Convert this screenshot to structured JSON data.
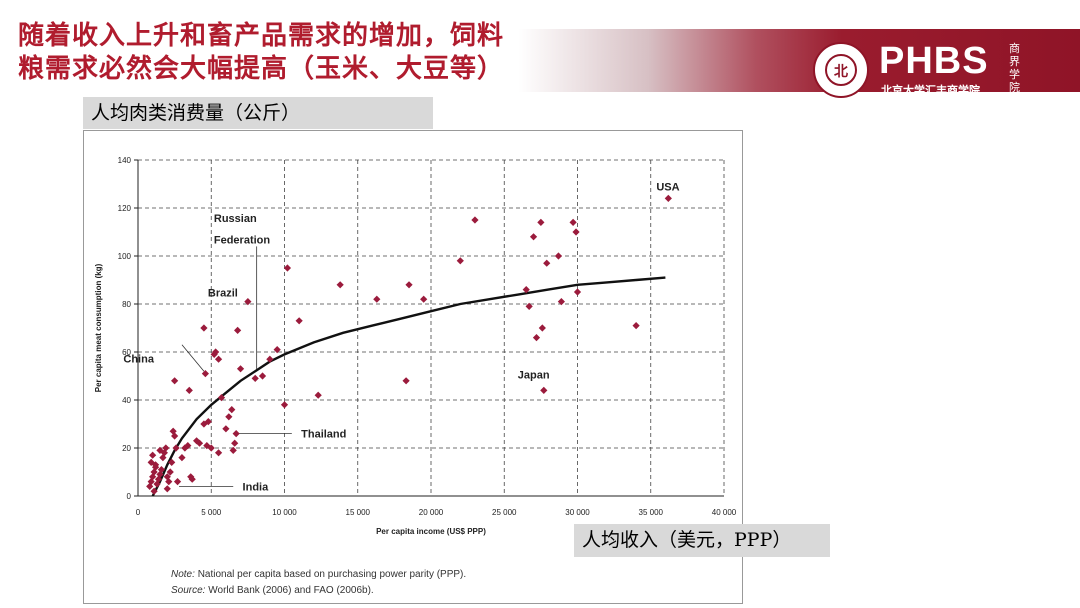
{
  "slide": {
    "title_line1": "随着收入上升和畜产品需求的增加，饲料",
    "title_line2": "粮需求必然会大幅提高（玉米、大豆等）",
    "y_unit_label": "人均肉类消费量（公斤）",
    "x_unit_label": "人均收入（美元，PPP）",
    "logo_text": "PHBS",
    "logo_subtitle": "北京大学汇丰商学院",
    "logo_calligraphy": "商界学院",
    "logo_seal_glyph": "北",
    "brand_color": "#8f1427",
    "title_color": "#b01c2e"
  },
  "notes": {
    "note_label": "Note:",
    "note_text": "National per capita based on purchasing power parity (PPP).",
    "source_label": "Source:",
    "source_text": "World Bank (2006) and FAO (2006b)."
  },
  "chart_data": {
    "type": "scatter",
    "xlabel": "Per capita income (US$ PPP)",
    "ylabel": "Per capita meat consumption (kg)",
    "xlim": [
      0,
      40000
    ],
    "ylim": [
      0,
      140
    ],
    "x_ticks": [
      0,
      5000,
      10000,
      15000,
      20000,
      25000,
      30000,
      35000,
      40000
    ],
    "x_tick_labels": [
      "0",
      "5 000",
      "10 000",
      "15 000",
      "20 000",
      "25 000",
      "30 000",
      "35 000",
      "40 000"
    ],
    "y_ticks": [
      0,
      20,
      40,
      60,
      80,
      100,
      120,
      140
    ],
    "grid": true,
    "marker_color": "#9b1b3c",
    "trend_curve": [
      [
        1000,
        0
      ],
      [
        1500,
        6
      ],
      [
        2000,
        13
      ],
      [
        2500,
        19
      ],
      [
        3000,
        24
      ],
      [
        4000,
        32
      ],
      [
        5000,
        38
      ],
      [
        6000,
        43
      ],
      [
        7000,
        48
      ],
      [
        8000,
        52
      ],
      [
        9000,
        56
      ],
      [
        10000,
        59
      ],
      [
        12000,
        64
      ],
      [
        14000,
        68
      ],
      [
        16000,
        71
      ],
      [
        18000,
        74
      ],
      [
        20000,
        77
      ],
      [
        22000,
        80
      ],
      [
        24000,
        82
      ],
      [
        26000,
        84
      ],
      [
        28000,
        86
      ],
      [
        30000,
        88
      ],
      [
        32000,
        89
      ],
      [
        34000,
        90
      ],
      [
        36000,
        91
      ]
    ],
    "points": [
      [
        800,
        4
      ],
      [
        900,
        6
      ],
      [
        1000,
        8
      ],
      [
        1100,
        10
      ],
      [
        1200,
        12
      ],
      [
        900,
        14
      ],
      [
        1000,
        17
      ],
      [
        1300,
        5
      ],
      [
        1400,
        7
      ],
      [
        1500,
        9
      ],
      [
        1600,
        11
      ],
      [
        1200,
        13
      ],
      [
        1700,
        16
      ],
      [
        1800,
        18
      ],
      [
        1900,
        20
      ],
      [
        2000,
        3
      ],
      [
        2100,
        6
      ],
      [
        2200,
        10
      ],
      [
        2300,
        14
      ],
      [
        2400,
        27
      ],
      [
        2500,
        25
      ],
      [
        2600,
        20
      ],
      [
        2700,
        6
      ],
      [
        2000,
        8
      ],
      [
        1500,
        19
      ],
      [
        1100,
        2
      ],
      [
        3000,
        16
      ],
      [
        3200,
        20
      ],
      [
        3400,
        21
      ],
      [
        3500,
        44
      ],
      [
        3600,
        8
      ],
      [
        3700,
        7
      ],
      [
        4000,
        23
      ],
      [
        4200,
        22
      ],
      [
        4500,
        30
      ],
      [
        4600,
        51
      ],
      [
        4700,
        21
      ],
      [
        4800,
        31
      ],
      [
        5000,
        20
      ],
      [
        5200,
        59
      ],
      [
        5300,
        60
      ],
      [
        5500,
        57
      ],
      [
        5500,
        18
      ],
      [
        5700,
        41
      ],
      [
        6000,
        28
      ],
      [
        6200,
        33
      ],
      [
        6400,
        36
      ],
      [
        6500,
        19
      ],
      [
        6600,
        22
      ],
      [
        6700,
        26
      ],
      [
        6800,
        69
      ],
      [
        7000,
        53
      ],
      [
        7500,
        81
      ],
      [
        8000,
        49
      ],
      [
        8500,
        50
      ],
      [
        9000,
        57
      ],
      [
        9500,
        61
      ],
      [
        10000,
        38
      ],
      [
        10200,
        95
      ],
      [
        11000,
        73
      ],
      [
        12300,
        42
      ],
      [
        2500,
        48
      ],
      [
        4500,
        70
      ],
      [
        13800,
        88
      ],
      [
        16300,
        82
      ],
      [
        18300,
        48
      ],
      [
        18500,
        88
      ],
      [
        19500,
        82
      ],
      [
        22000,
        98
      ],
      [
        23000,
        115
      ],
      [
        26500,
        86
      ],
      [
        26700,
        79
      ],
      [
        27000,
        108
      ],
      [
        27200,
        66
      ],
      [
        27500,
        114
      ],
      [
        27600,
        70
      ],
      [
        27700,
        44
      ],
      [
        27900,
        97
      ],
      [
        28700,
        100
      ],
      [
        28900,
        81
      ],
      [
        29700,
        114
      ],
      [
        29900,
        110
      ],
      [
        30000,
        85
      ],
      [
        34000,
        71
      ],
      [
        36200,
        124
      ]
    ],
    "annotations": [
      {
        "text": "USA",
        "x": 36200,
        "y": 124
      },
      {
        "text": "Russian",
        "x": 7500,
        "y": 113
      },
      {
        "text": "Federation",
        "x": 7500,
        "y": 106
      },
      {
        "text": "Brazil",
        "x": 7500,
        "y": 81
      },
      {
        "text": "China",
        "x": 4600,
        "y": 51
      },
      {
        "text": "Japan",
        "x": 27700,
        "y": 44
      },
      {
        "text": "Thailand",
        "x": 6700,
        "y": 26
      },
      {
        "text": "India",
        "x": 2700,
        "y": 4
      }
    ]
  }
}
